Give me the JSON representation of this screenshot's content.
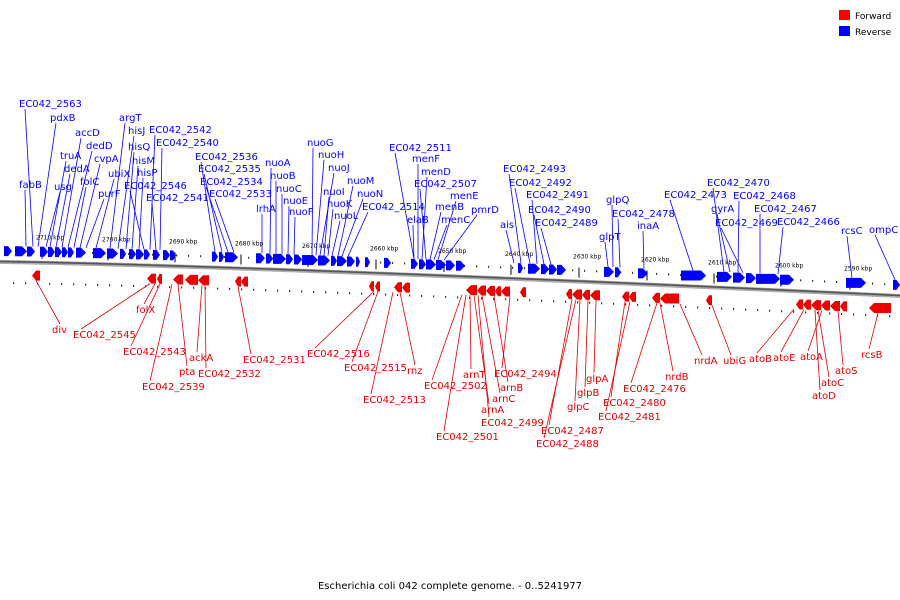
{
  "legend": {
    "forward_label": "Forward",
    "forward_color": "#ff0000",
    "reverse_label": "Reverse",
    "reverse_color": "#0000ff"
  },
  "caption": "Escherichia coli 042 complete genome. - 0..5241977",
  "ticks": [
    "2710 kbp",
    "2700 kbp",
    "2690 kbp",
    "2680 kbp",
    "2670 kbp",
    "2660 kbp",
    "2650 kbp",
    "2640 kbp",
    "2630 kbp",
    "2620 kbp",
    "2610 kbp",
    "2600 kbp",
    "2590 kbp"
  ],
  "reverse_genes": [
    "fabB",
    "EC042_2563",
    "pdxB",
    "usg",
    "truA",
    "dedA",
    "accD",
    "dedD",
    "folC",
    "cvpA",
    "purF",
    "ubiX",
    "argT",
    "hisJ",
    "hisQ",
    "hisM",
    "hisP",
    "EC042_2546",
    "EC042_2542",
    "EC042_2541",
    "EC042_2540",
    "EC042_2536",
    "EC042_2535",
    "EC042_2534",
    "EC042_2533",
    "lrhA",
    "nuoA",
    "nuoB",
    "nuoC",
    "nuoE",
    "nuoF",
    "nuoG",
    "nuoH",
    "nuoJ",
    "nuoI",
    "nuoK",
    "nuoL",
    "nuoM",
    "nuoN",
    "EC042_2514",
    "EC042_2511",
    "menF",
    "elaB",
    "menD",
    "EC042_2507",
    "menB",
    "menC",
    "menE",
    "pmrD",
    "ais",
    "EC042_2493",
    "EC042_2492",
    "EC042_2491",
    "EC042_2490",
    "EC042_2489",
    "glpT",
    "glpQ",
    "EC042_2478",
    "inaA",
    "EC042_2473",
    "EC042_2470",
    "gyrA",
    "EC042_2468",
    "EC042_2469",
    "EC042_2467",
    "EC042_2466",
    "rcsC",
    "ompC"
  ],
  "forward_genes": [
    "div",
    "EC042_2545",
    "folX",
    "EC042_2543",
    "EC042_2539",
    "pta",
    "ackA",
    "EC042_2532",
    "EC042_2531",
    "EC042_2516",
    "EC042_2515",
    "EC042_2513",
    "rnz",
    "EC042_2502",
    "EC042_2501",
    "arnT",
    "arnA",
    "EC042_2499",
    "arnC",
    "arnB",
    "EC042_2494",
    "EC042_2487",
    "EC042_2488",
    "glpC",
    "glpB",
    "glpA",
    "EC042_2480",
    "EC042_2481",
    "EC042_2476",
    "nrdB",
    "nrdA",
    "ubiG",
    "atoB",
    "atoE",
    "atoD",
    "atoC",
    "atoA",
    "atoS",
    "rcsB"
  ]
}
